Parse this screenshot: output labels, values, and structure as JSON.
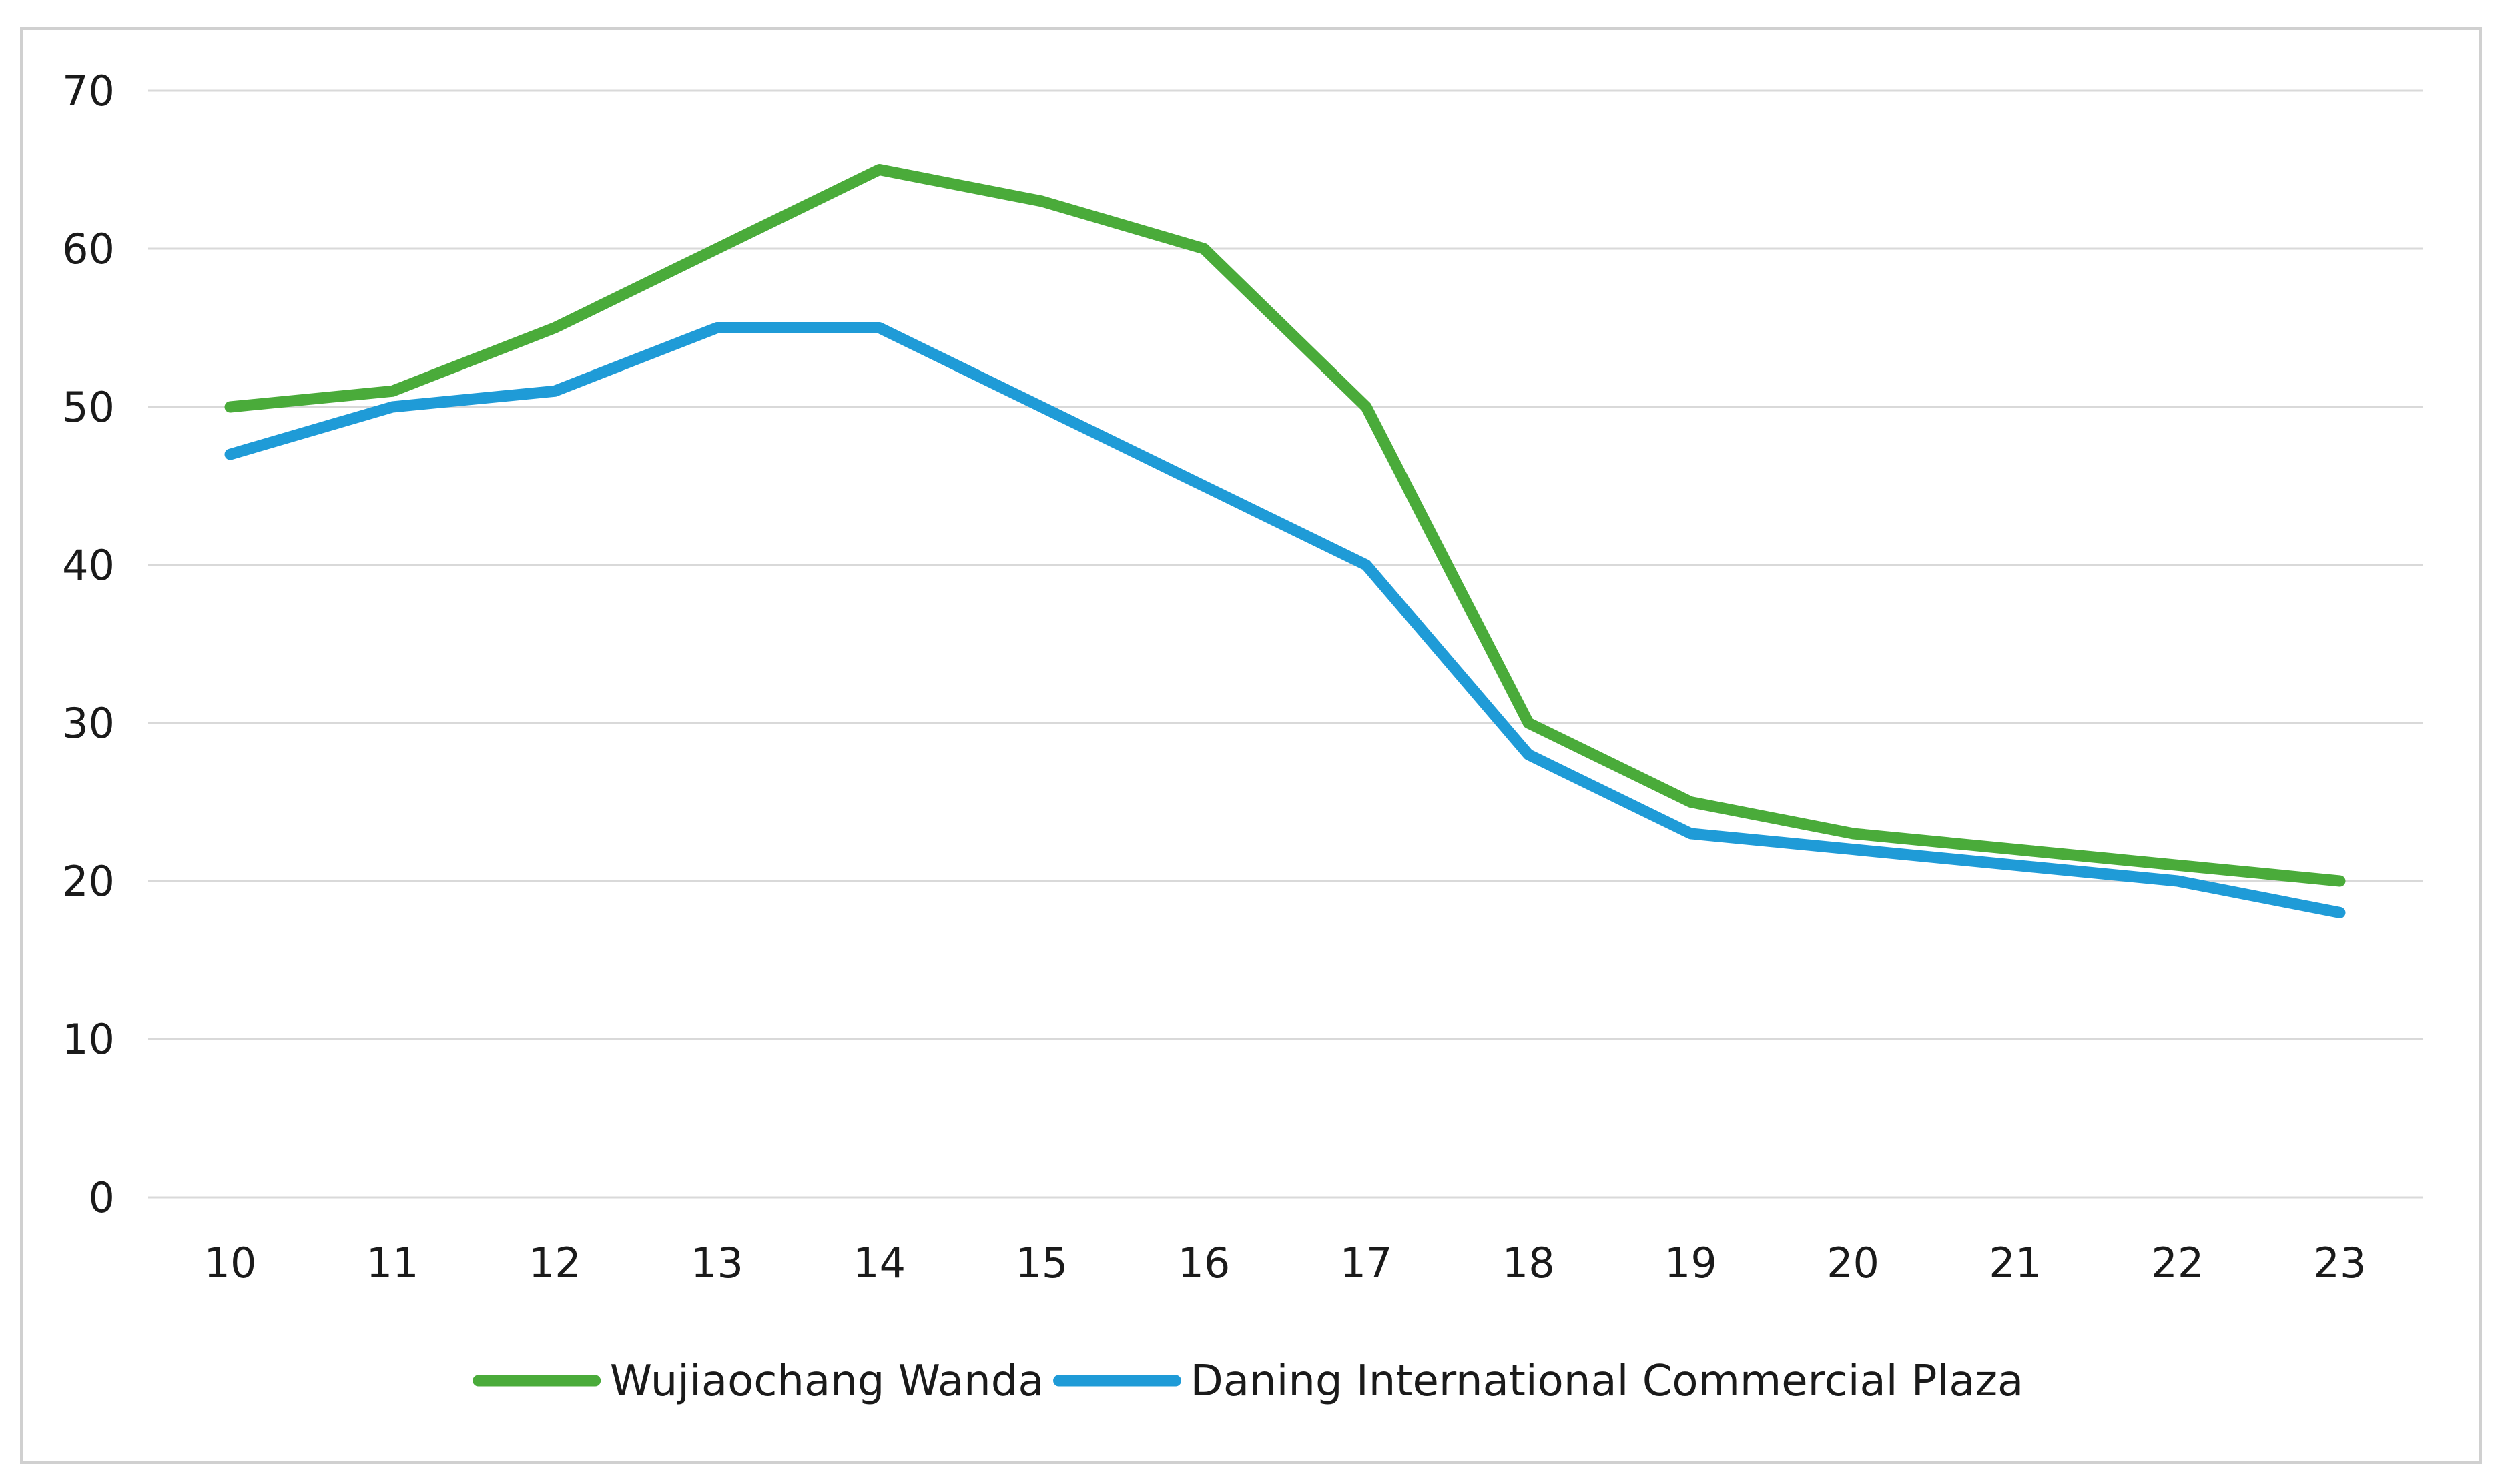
{
  "chart_data": {
    "type": "line",
    "title": "",
    "xlabel": "",
    "ylabel": "",
    "categories": [
      "10",
      "11",
      "12",
      "13",
      "14",
      "15",
      "16",
      "17",
      "18",
      "19",
      "20",
      "21",
      "22",
      "23"
    ],
    "ylim": [
      0,
      70
    ],
    "yticks": [
      "0",
      "10",
      "20",
      "30",
      "40",
      "50",
      "60",
      "70"
    ],
    "grid": true,
    "legend_position": "bottom-center",
    "series": [
      {
        "name": "Wujiaochang Wanda",
        "color": "#4aab3a",
        "values": [
          50,
          51,
          55,
          60,
          65,
          63,
          60,
          50,
          30,
          25,
          23,
          22,
          21,
          20
        ]
      },
      {
        "name": "Daning International Commercial Plaza",
        "color": "#1f9bd7",
        "values": [
          47,
          50,
          51,
          55,
          55,
          50,
          45,
          40,
          28,
          23,
          22,
          21,
          20,
          18
        ]
      }
    ]
  }
}
